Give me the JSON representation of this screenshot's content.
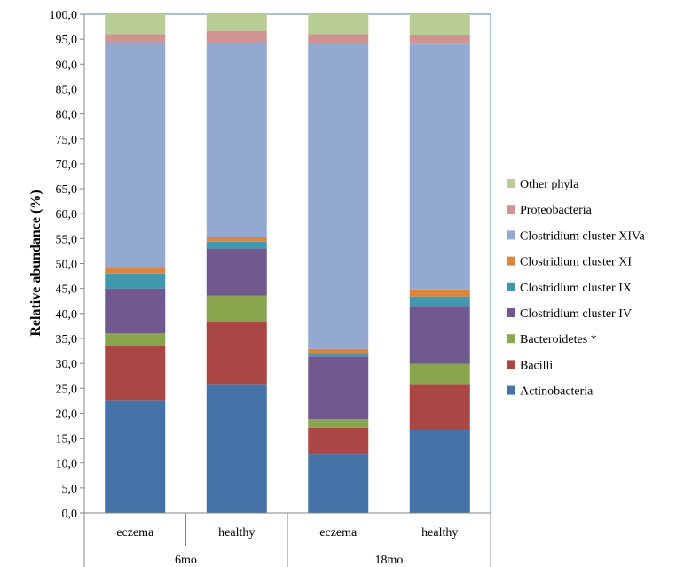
{
  "chart_data": {
    "type": "bar",
    "stacked": true,
    "ylabel": "Relative abundance (%)",
    "ylim": [
      0,
      100
    ],
    "ytick_step": 5,
    "ytick_labels": [
      "0,0",
      "5,0",
      "10,0",
      "15,0",
      "20,0",
      "25,0",
      "30,0",
      "35,0",
      "40,0",
      "45,0",
      "50,0",
      "55,0",
      "60,0",
      "65,0",
      "70,0",
      "75,0",
      "80,0",
      "85,0",
      "90,0",
      "95,0",
      "100,0"
    ],
    "categories": [
      "eczema",
      "healthy",
      "eczema",
      "healthy"
    ],
    "groups": [
      {
        "label": "6mo",
        "categories": [
          "eczema",
          "healthy"
        ]
      },
      {
        "label": "18mo",
        "categories": [
          "eczema",
          "healthy"
        ]
      }
    ],
    "grid": false,
    "legend_position": "right",
    "series": [
      {
        "name": "Actinobacteria",
        "color": "#4572A7",
        "values": [
          22.5,
          25.7,
          11.7,
          16.7
        ]
      },
      {
        "name": "Bacilli",
        "color": "#AA4643",
        "values": [
          11.0,
          12.5,
          5.4,
          9.0
        ]
      },
      {
        "name": "Bacteroidetes *",
        "color": "#89A54E",
        "values": [
          2.5,
          5.4,
          1.7,
          4.2
        ]
      },
      {
        "name": "Clostridium cluster IV",
        "color": "#71588F",
        "values": [
          9.0,
          9.4,
          12.6,
          11.6
        ]
      },
      {
        "name": "Clostridium cluster IX",
        "color": "#4198AF",
        "values": [
          3.0,
          1.4,
          0.5,
          1.9
        ]
      },
      {
        "name": "Clostridium cluster XI",
        "color": "#DB843D",
        "values": [
          1.3,
          0.9,
          1.0,
          1.4
        ]
      },
      {
        "name": "Clostridium cluster XIVa",
        "color": "#93A9CF",
        "values": [
          45.1,
          39.1,
          61.3,
          49.2
        ]
      },
      {
        "name": "Proteobacteria",
        "color": "#D19392",
        "values": [
          1.6,
          2.3,
          1.8,
          1.9
        ]
      },
      {
        "name": "Other phyla",
        "color": "#B9CD96",
        "values": [
          4.0,
          3.3,
          4.0,
          4.1
        ]
      }
    ]
  }
}
